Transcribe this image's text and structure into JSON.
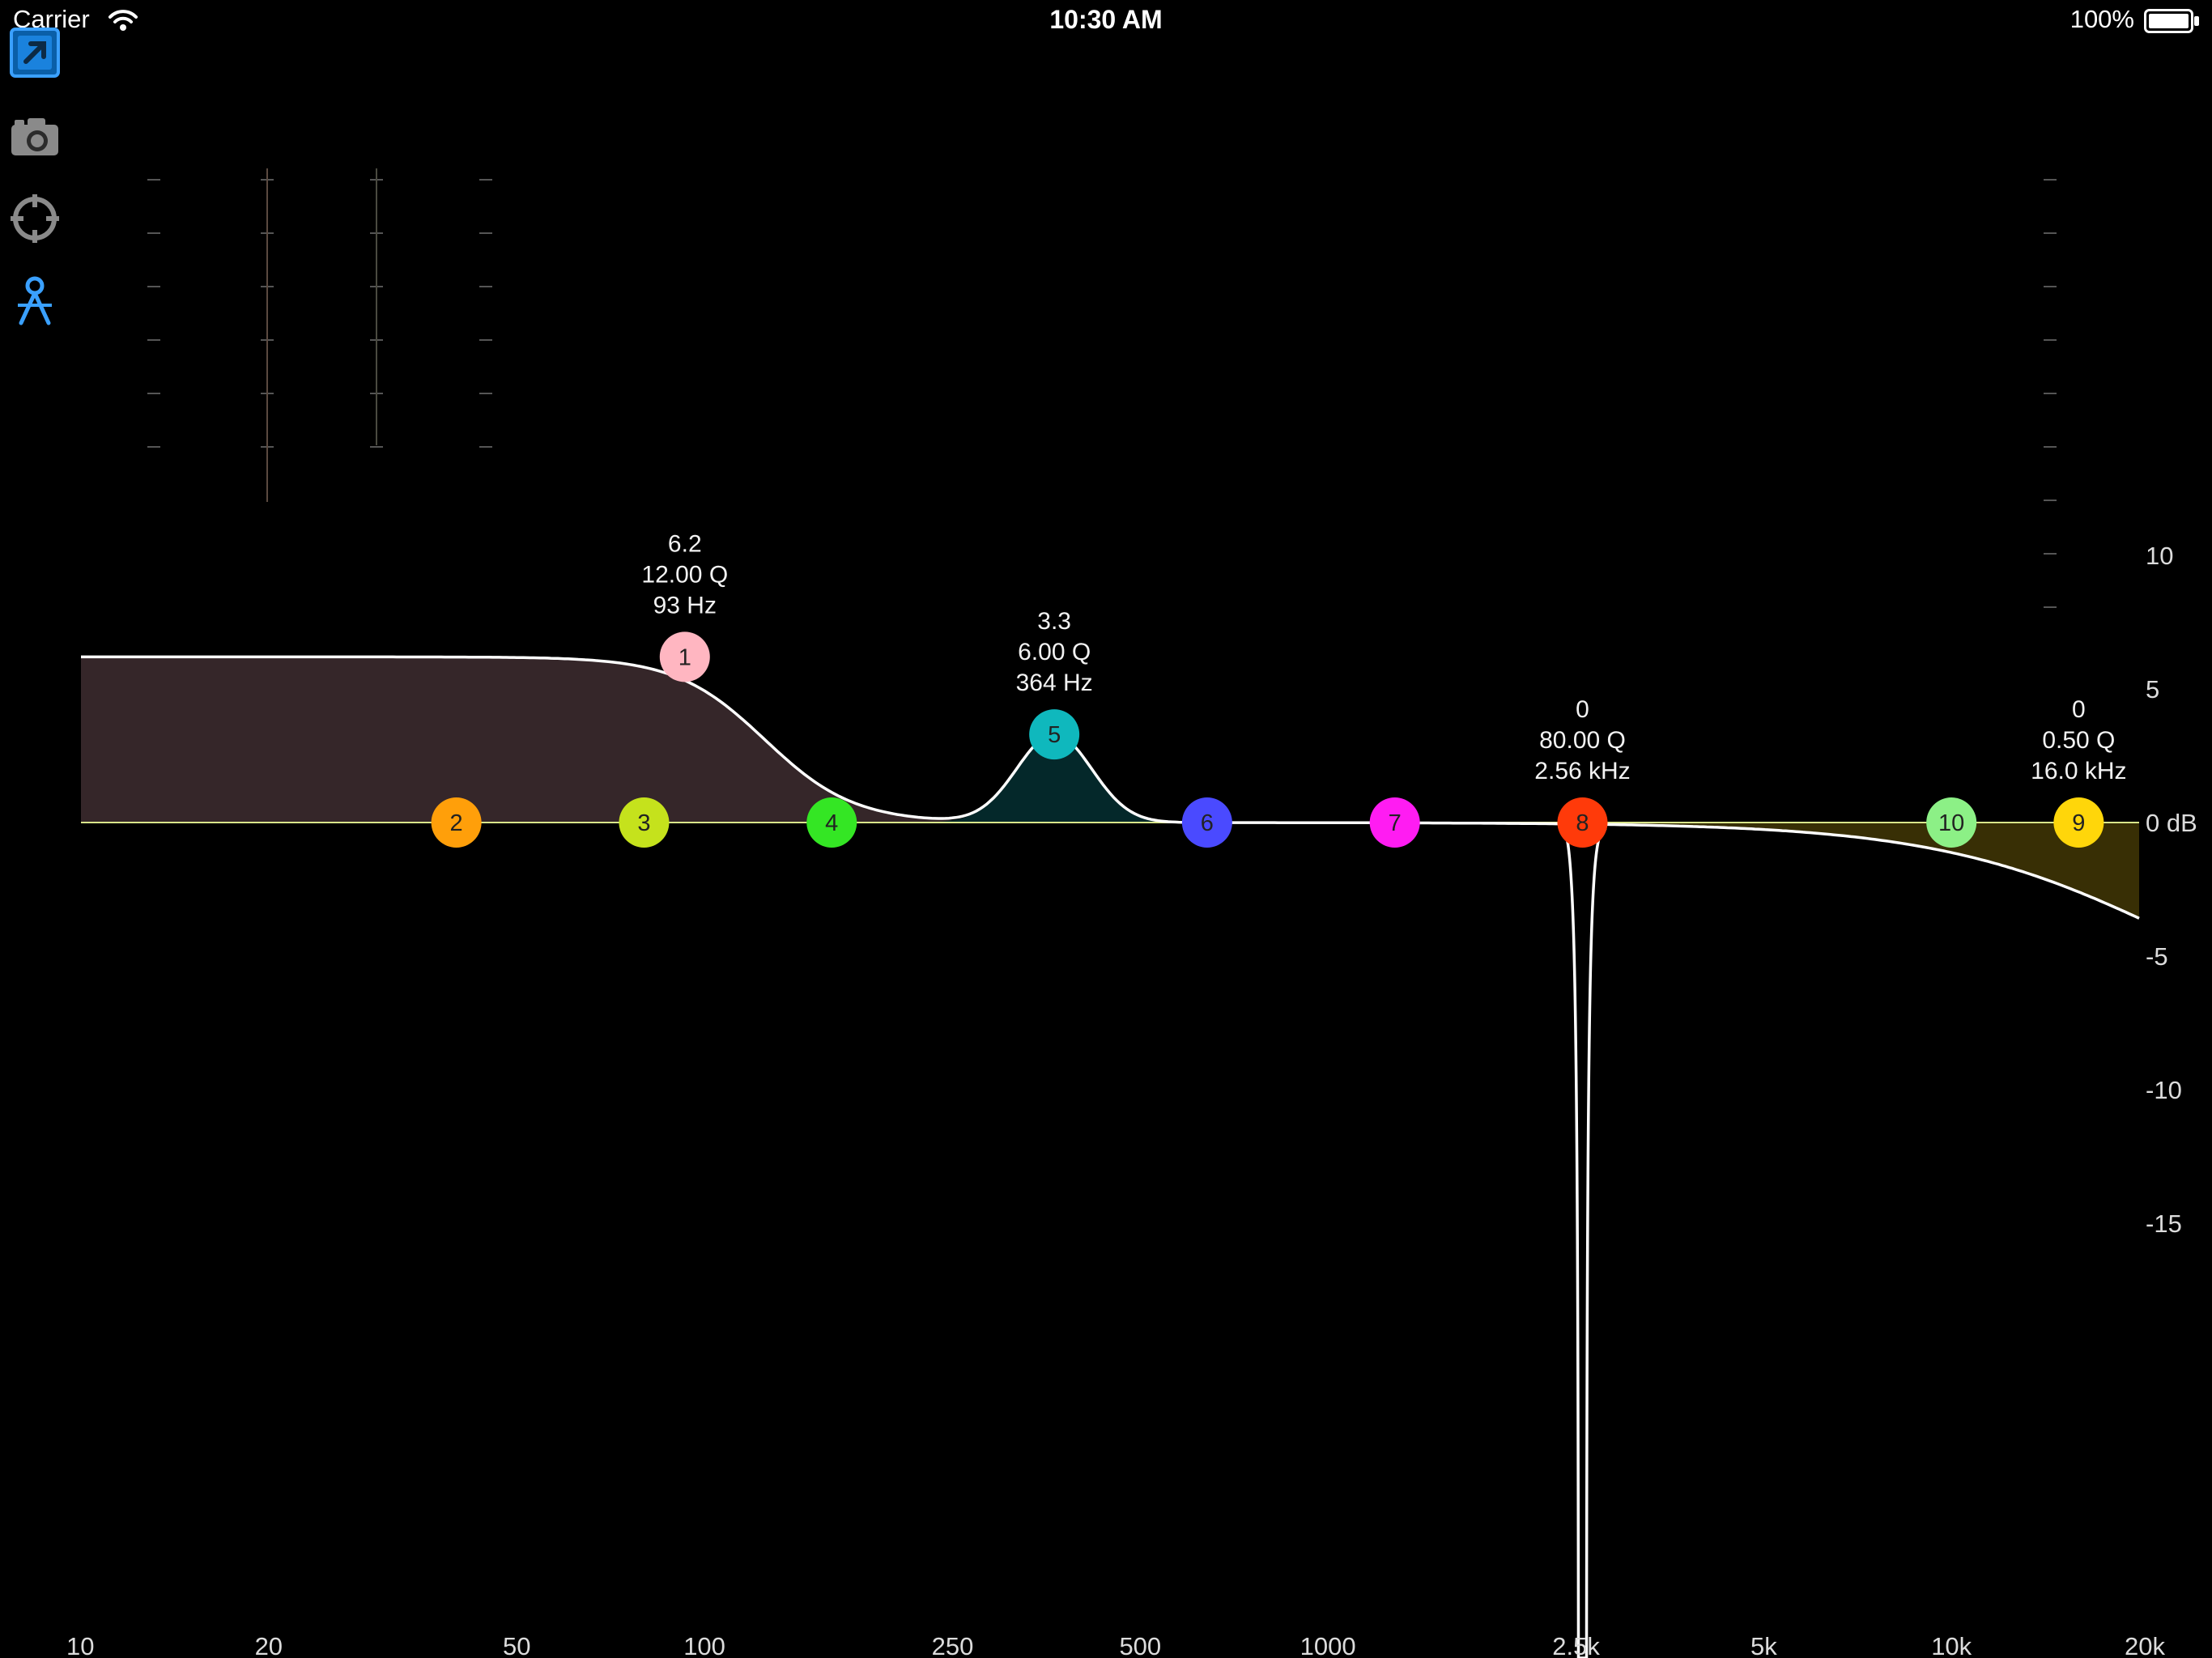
{
  "status_bar": {
    "carrier": "Carrier",
    "time": "10:30 AM",
    "battery": "100%"
  },
  "toolbar": {
    "items": [
      {
        "name": "share-icon",
        "color": "#3aa0ff"
      },
      {
        "name": "camera-icon",
        "color": "#9a9a9a"
      },
      {
        "name": "crosshair-icon",
        "color": "#9a9a9a"
      },
      {
        "name": "compass-icon",
        "color": "#3aa0ff"
      }
    ]
  },
  "axes": {
    "x_ticks": [
      {
        "label": "10",
        "hz": 10
      },
      {
        "label": "20",
        "hz": 20
      },
      {
        "label": "50",
        "hz": 50
      },
      {
        "label": "100",
        "hz": 100
      },
      {
        "label": "250",
        "hz": 250
      },
      {
        "label": "500",
        "hz": 500
      },
      {
        "label": "1000",
        "hz": 1000
      },
      {
        "label": "2.5k",
        "hz": 2500
      },
      {
        "label": "5k",
        "hz": 5000
      },
      {
        "label": "10k",
        "hz": 10000
      },
      {
        "label": "20k",
        "hz": 20000
      }
    ],
    "y_ticks": [
      {
        "label": "10",
        "db": 10
      },
      {
        "label": "5",
        "db": 5
      },
      {
        "label": "0 dB",
        "db": 0
      },
      {
        "label": "-5",
        "db": -5
      },
      {
        "label": "-10",
        "db": -10
      },
      {
        "label": "-15",
        "db": -15
      }
    ],
    "x_range_hz": [
      10,
      20000
    ],
    "y_range_db": [
      -15,
      15
    ],
    "x_scale": "log"
  },
  "colors": {
    "zero_line": "#d9e68a",
    "curve": "#ffffff",
    "low_shelf_fill": "#352629",
    "peak_fill": "#04282a",
    "high_shelf_fill": "#382f05"
  },
  "bands": [
    {
      "id": "1",
      "hz": 93,
      "gain": 6.2,
      "color": "#ffb6c1",
      "labels": [
        "6.2",
        "12.00 Q",
        "93 Hz"
      ]
    },
    {
      "id": "2",
      "hz": 40,
      "gain": 0,
      "color": "#ff9f0a",
      "labels": []
    },
    {
      "id": "3",
      "hz": 80,
      "gain": 0,
      "color": "#c5e21c",
      "labels": []
    },
    {
      "id": "4",
      "hz": 160,
      "gain": 0,
      "color": "#34e624",
      "labels": []
    },
    {
      "id": "5",
      "hz": 364,
      "gain": 3.3,
      "color": "#0fb8bd",
      "labels": [
        "3.3",
        "6.00 Q",
        "364 Hz"
      ]
    },
    {
      "id": "6",
      "hz": 640,
      "gain": 0,
      "color": "#4a4aff",
      "labels": []
    },
    {
      "id": "7",
      "hz": 1280,
      "gain": 0,
      "color": "#ff1cf2",
      "labels": []
    },
    {
      "id": "8",
      "hz": 2560,
      "gain": 0,
      "color": "#ff3a0a",
      "labels": [
        "0",
        "80.00 Q",
        "2.56 kHz"
      ]
    },
    {
      "id": "10",
      "hz": 10000,
      "gain": 0,
      "color": "#8cf086",
      "labels": []
    },
    {
      "id": "9",
      "hz": 16000,
      "gain": 0,
      "color": "#ffd60a",
      "labels": [
        "0",
        "0.50 Q",
        "16.0 kHz"
      ]
    }
  ]
}
